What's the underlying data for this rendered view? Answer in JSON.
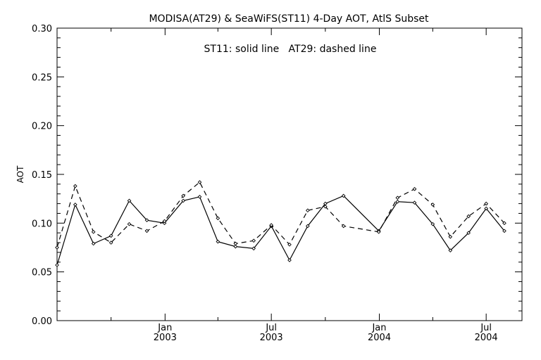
{
  "chart_data": {
    "type": "line",
    "title": "MODISA(AT29) & SeaWiFS(ST11) 4-Day AOT, AtlS Subset",
    "annotation": "ST11: solid line   AT29: dashed line",
    "ylabel": "AOT",
    "xlabel": "",
    "ylim": [
      0.0,
      0.3
    ],
    "xlim": [
      "2002-07-01",
      "2004-08-31"
    ],
    "yticks": [
      "0.00",
      "0.05",
      "0.10",
      "0.15",
      "0.20",
      "0.25",
      "0.30"
    ],
    "xticks": [
      {
        "month": "Jan",
        "year": "2003",
        "date": "2003-01-01"
      },
      {
        "month": "Jul",
        "year": "2003",
        "date": "2003-07-01"
      },
      {
        "month": "Jan",
        "year": "2004",
        "date": "2004-01-01"
      },
      {
        "month": "Jul",
        "year": "2004",
        "date": "2004-07-01"
      }
    ],
    "minor_tick_dates": [
      "2002-10-01",
      "2003-04-01",
      "2003-10-01",
      "2004-04-01"
    ],
    "grid": false,
    "series": [
      {
        "name": "ST11",
        "style": "solid",
        "color": "#000000",
        "points": [
          [
            "2002-07-01",
            0.057
          ],
          [
            "2002-08-01",
            0.119
          ],
          [
            "2002-09-01",
            0.079
          ],
          [
            "2002-10-01",
            0.087
          ],
          [
            "2002-11-01",
            0.123
          ],
          [
            "2002-12-01",
            0.103
          ],
          [
            "2002-12-31",
            0.1
          ],
          [
            "2003-02-01",
            0.123
          ],
          [
            "2003-03-01",
            0.127
          ],
          [
            "2003-04-01",
            0.081
          ],
          [
            "2003-05-01",
            0.076
          ],
          [
            "2003-06-01",
            0.074
          ],
          [
            "2003-07-01",
            0.097
          ],
          [
            "2003-08-01",
            0.062
          ],
          [
            "2003-09-01",
            0.097
          ],
          [
            "2003-10-01",
            0.12
          ],
          [
            "2003-11-01",
            0.128
          ],
          [
            "2003-12-31",
            0.092
          ],
          [
            "2004-02-01",
            0.122
          ],
          [
            "2004-03-01",
            0.121
          ],
          [
            "2004-04-01",
            0.099
          ],
          [
            "2004-05-01",
            0.072
          ],
          [
            "2004-06-01",
            0.09
          ],
          [
            "2004-07-01",
            0.115
          ],
          [
            "2004-08-01",
            0.092
          ]
        ]
      },
      {
        "name": "AT29",
        "style": "dashed",
        "color": "#000000",
        "points": [
          [
            "2002-07-01",
            0.075
          ],
          [
            "2002-08-01",
            0.138
          ],
          [
            "2002-09-01",
            0.091
          ],
          [
            "2002-10-01",
            0.08
          ],
          [
            "2002-11-01",
            0.099
          ],
          [
            "2002-12-01",
            0.092
          ],
          [
            "2002-12-31",
            0.102
          ],
          [
            "2003-02-01",
            0.128
          ],
          [
            "2003-03-01",
            0.142
          ],
          [
            "2003-04-01",
            0.105
          ],
          [
            "2003-05-01",
            0.079
          ],
          [
            "2003-06-01",
            0.082
          ],
          [
            "2003-07-01",
            0.098
          ],
          [
            "2003-08-01",
            0.078
          ],
          [
            "2003-09-01",
            0.113
          ],
          [
            "2003-10-01",
            0.117
          ],
          [
            "2003-11-01",
            0.097
          ],
          [
            "2003-12-31",
            0.091
          ],
          [
            "2004-02-01",
            0.126
          ],
          [
            "2004-03-01",
            0.135
          ],
          [
            "2004-04-01",
            0.119
          ],
          [
            "2004-05-01",
            0.086
          ],
          [
            "2004-06-01",
            0.107
          ],
          [
            "2004-07-01",
            0.12
          ],
          [
            "2004-08-01",
            0.1
          ]
        ]
      }
    ]
  }
}
